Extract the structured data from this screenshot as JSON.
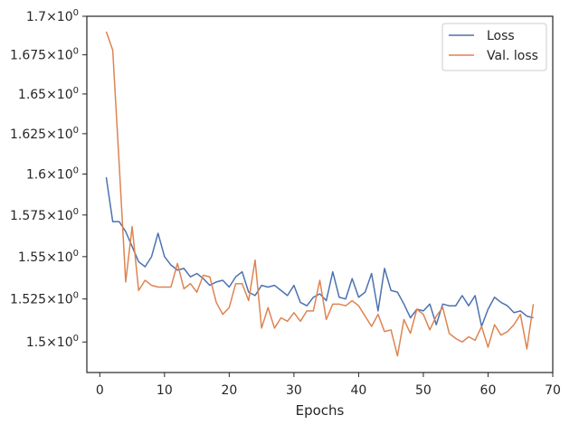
{
  "chart_data": {
    "type": "line",
    "title": "",
    "xlabel": "Epochs",
    "ylabel": "",
    "xlim": [
      -2,
      70
    ],
    "ylim": [
      1.4825,
      1.7
    ],
    "yscale": "log",
    "grid": false,
    "legend_position": "top-right",
    "x_ticks": [
      0,
      10,
      20,
      30,
      40,
      50,
      60,
      70
    ],
    "x_tick_labels": [
      "0",
      "10",
      "20",
      "30",
      "40",
      "50",
      "60",
      "70"
    ],
    "y_ticks": [
      1.5,
      1.525,
      1.55,
      1.575,
      1.6,
      1.625,
      1.65,
      1.675,
      1.7
    ],
    "y_tick_labels": [
      {
        "base": "1.5",
        "exp": "0"
      },
      {
        "base": "1.525",
        "exp": "0"
      },
      {
        "base": "1.55",
        "exp": "0"
      },
      {
        "base": "1.575",
        "exp": "0"
      },
      {
        "base": "1.6",
        "exp": "0"
      },
      {
        "base": "1.625",
        "exp": "0"
      },
      {
        "base": "1.65",
        "exp": "0"
      },
      {
        "base": "1.675",
        "exp": "0"
      },
      {
        "base": "1.7",
        "exp": "0"
      }
    ],
    "x": [
      1,
      2,
      3,
      4,
      5,
      6,
      7,
      8,
      9,
      10,
      11,
      12,
      13,
      14,
      15,
      16,
      17,
      18,
      19,
      20,
      21,
      22,
      23,
      24,
      25,
      26,
      27,
      28,
      29,
      30,
      31,
      32,
      33,
      34,
      35,
      36,
      37,
      38,
      39,
      40,
      41,
      42,
      43,
      44,
      45,
      46,
      47,
      48,
      49,
      50,
      51,
      52,
      53,
      54,
      55,
      56,
      57,
      58,
      59,
      60,
      61,
      62,
      63,
      64,
      65,
      66,
      67
    ],
    "series": [
      {
        "name": "Loss",
        "color": "#4c72b0",
        "values": [
          1.598,
          1.571,
          1.571,
          1.565,
          1.556,
          1.547,
          1.544,
          1.55,
          1.564,
          1.55,
          1.545,
          1.542,
          1.543,
          1.538,
          1.54,
          1.537,
          1.533,
          1.535,
          1.536,
          1.532,
          1.538,
          1.541,
          1.529,
          1.527,
          1.533,
          1.532,
          1.533,
          1.53,
          1.527,
          1.533,
          1.523,
          1.521,
          1.526,
          1.528,
          1.524,
          1.541,
          1.526,
          1.525,
          1.537,
          1.526,
          1.529,
          1.54,
          1.518,
          1.543,
          1.53,
          1.529,
          1.522,
          1.514,
          1.519,
          1.518,
          1.522,
          1.51,
          1.522,
          1.521,
          1.521,
          1.527,
          1.521,
          1.527,
          1.509,
          1.519,
          1.526,
          1.523,
          1.521,
          1.517,
          1.518,
          1.515,
          1.514
        ]
      },
      {
        "name": "Val. loss",
        "color": "#dd8452",
        "values": [
          1.69,
          1.678,
          1.606,
          1.535,
          1.568,
          1.53,
          1.536,
          1.533,
          1.532,
          1.532,
          1.532,
          1.546,
          1.531,
          1.534,
          1.529,
          1.539,
          1.538,
          1.523,
          1.516,
          1.52,
          1.534,
          1.534,
          1.524,
          1.548,
          1.508,
          1.52,
          1.508,
          1.514,
          1.512,
          1.517,
          1.512,
          1.518,
          1.518,
          1.536,
          1.513,
          1.522,
          1.522,
          1.521,
          1.524,
          1.521,
          1.515,
          1.509,
          1.516,
          1.506,
          1.507,
          1.492,
          1.513,
          1.505,
          1.519,
          1.516,
          1.507,
          1.515,
          1.52,
          1.505,
          1.502,
          1.5,
          1.503,
          1.501,
          1.509,
          1.497,
          1.51,
          1.504,
          1.506,
          1.51,
          1.516,
          1.496,
          1.522
        ]
      }
    ]
  }
}
